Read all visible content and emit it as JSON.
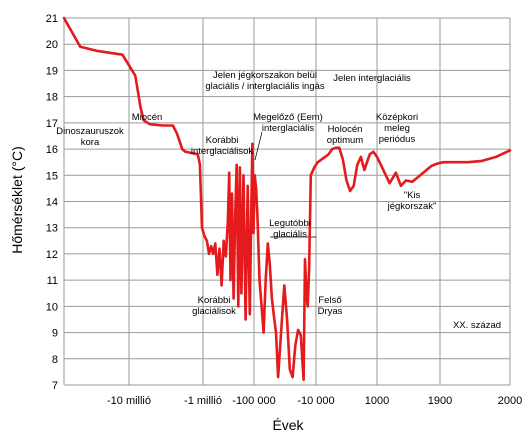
{
  "chart_data": {
    "type": "line",
    "title": "",
    "xlabel": "Évek",
    "ylabel": "Hőmérséklet (°C)",
    "ylim": [
      7,
      21
    ],
    "y_ticks": [
      "7",
      "8",
      "9",
      "10",
      "11",
      "12",
      "13",
      "14",
      "15",
      "16",
      "17",
      "18",
      "19",
      "20",
      "21"
    ],
    "x_ticks": [
      "-10 millió",
      "-1 millió",
      "-100 000",
      "-10 000",
      "1000",
      "1900",
      "2000"
    ],
    "grid": "horizontal",
    "line_color": "#e41a1c",
    "series": [
      {
        "values": [
          [
            0.0,
            21.0
          ],
          [
            0.25,
            19.9
          ],
          [
            0.5,
            19.75
          ],
          [
            0.9,
            19.6
          ],
          [
            1.3,
            18.8
          ],
          [
            1.55,
            17.6
          ],
          [
            1.7,
            17.1
          ],
          [
            2.0,
            16.95
          ],
          [
            2.6,
            16.9
          ],
          [
            3.1,
            16.9
          ],
          [
            3.3,
            16.6
          ],
          [
            3.55,
            16.0
          ],
          [
            3.7,
            15.9
          ],
          [
            4.0,
            15.85
          ],
          [
            4.3,
            15.8
          ],
          [
            4.4,
            15.4
          ],
          [
            4.5,
            13.0
          ],
          [
            4.6,
            12.7
          ],
          [
            4.7,
            12.5
          ],
          [
            4.78,
            12.0
          ],
          [
            4.86,
            12.3
          ],
          [
            4.94,
            12.0
          ],
          [
            5.02,
            12.4
          ],
          [
            5.1,
            11.2
          ],
          [
            5.18,
            12.2
          ],
          [
            5.26,
            10.8
          ],
          [
            5.34,
            12.5
          ],
          [
            5.42,
            11.9
          ],
          [
            5.5,
            13.2
          ],
          [
            5.55,
            15.1
          ],
          [
            5.6,
            11.0
          ],
          [
            5.66,
            14.3
          ],
          [
            5.72,
            10.3
          ],
          [
            5.78,
            13.5
          ],
          [
            5.84,
            15.4
          ],
          [
            5.9,
            10.0
          ],
          [
            5.96,
            15.3
          ],
          [
            6.02,
            10.5
          ],
          [
            6.1,
            15.0
          ],
          [
            6.18,
            9.5
          ],
          [
            6.26,
            14.6
          ],
          [
            6.34,
            9.7
          ],
          [
            6.4,
            14.0
          ],
          [
            6.44,
            16.2
          ],
          [
            6.48,
            12.8
          ],
          [
            6.52,
            15.0
          ],
          [
            6.56,
            14.5
          ],
          [
            6.6,
            13.5
          ],
          [
            6.66,
            11.0
          ],
          [
            6.72,
            10.0
          ],
          [
            6.78,
            9.0
          ],
          [
            6.84,
            11.0
          ],
          [
            6.9,
            12.4
          ],
          [
            6.96,
            11.6
          ],
          [
            7.02,
            10.3
          ],
          [
            7.08,
            9.6
          ],
          [
            7.14,
            9.0
          ],
          [
            7.2,
            7.3
          ],
          [
            7.3,
            9.3
          ],
          [
            7.38,
            10.8
          ],
          [
            7.46,
            9.5
          ],
          [
            7.54,
            7.6
          ],
          [
            7.62,
            7.3
          ],
          [
            7.7,
            8.5
          ],
          [
            7.78,
            9.1
          ],
          [
            7.86,
            8.9
          ],
          [
            7.94,
            7.2
          ],
          [
            7.98,
            11.8
          ],
          [
            8.02,
            10.5
          ],
          [
            8.06,
            10.0
          ],
          [
            8.1,
            11.4
          ],
          [
            8.15,
            15.0
          ],
          [
            8.25,
            15.3
          ],
          [
            8.35,
            15.5
          ],
          [
            8.45,
            15.6
          ],
          [
            8.55,
            15.7
          ],
          [
            8.65,
            15.8
          ],
          [
            8.75,
            16.0
          ],
          [
            8.85,
            16.05
          ],
          [
            8.95,
            16.05
          ],
          [
            9.05,
            15.6
          ],
          [
            9.15,
            14.8
          ],
          [
            9.25,
            14.4
          ],
          [
            9.35,
            14.6
          ],
          [
            9.45,
            15.4
          ],
          [
            9.55,
            15.7
          ],
          [
            9.65,
            15.2
          ],
          [
            9.72,
            15.5
          ],
          [
            9.8,
            15.8
          ],
          [
            9.9,
            15.9
          ],
          [
            10.0,
            15.7
          ],
          [
            10.1,
            15.2
          ],
          [
            10.2,
            14.7
          ],
          [
            10.3,
            15.1
          ],
          [
            10.38,
            14.6
          ],
          [
            10.46,
            14.8
          ],
          [
            10.56,
            14.75
          ],
          [
            10.66,
            14.95
          ],
          [
            10.76,
            15.15
          ],
          [
            10.86,
            15.35
          ],
          [
            10.96,
            15.45
          ],
          [
            11.05,
            15.5
          ],
          [
            11.2,
            15.5
          ],
          [
            11.4,
            15.5
          ],
          [
            11.6,
            15.55
          ],
          [
            11.8,
            15.7
          ],
          [
            12.0,
            15.95
          ]
        ]
      }
    ],
    "annotations": [
      {
        "lines": [
          "Dinoszauruszok",
          "kora"
        ]
      },
      {
        "lines": [
          "Miocén"
        ]
      },
      {
        "lines": [
          "Jelen jégkorszakon belül",
          "glaciális / interglaciális ingás"
        ]
      },
      {
        "lines": [
          "Jelen interglaciális"
        ]
      },
      {
        "lines": [
          "Megelőző (Eem)",
          "interglaciális"
        ]
      },
      {
        "lines": [
          "Korábbi",
          "interglaciálisok"
        ]
      },
      {
        "lines": [
          "Holocén",
          "optimum"
        ]
      },
      {
        "lines": [
          "Középkori",
          "meleg",
          "periódus"
        ]
      },
      {
        "lines": [
          "\"Kis",
          "jégkorszak\""
        ]
      },
      {
        "lines": [
          "Legutóbbi",
          "glaciális"
        ]
      },
      {
        "lines": [
          "Korábbi",
          "glaciálisok"
        ]
      },
      {
        "lines": [
          "Felső",
          "Dryas"
        ]
      },
      {
        "lines": [
          "XX. század"
        ]
      }
    ]
  }
}
